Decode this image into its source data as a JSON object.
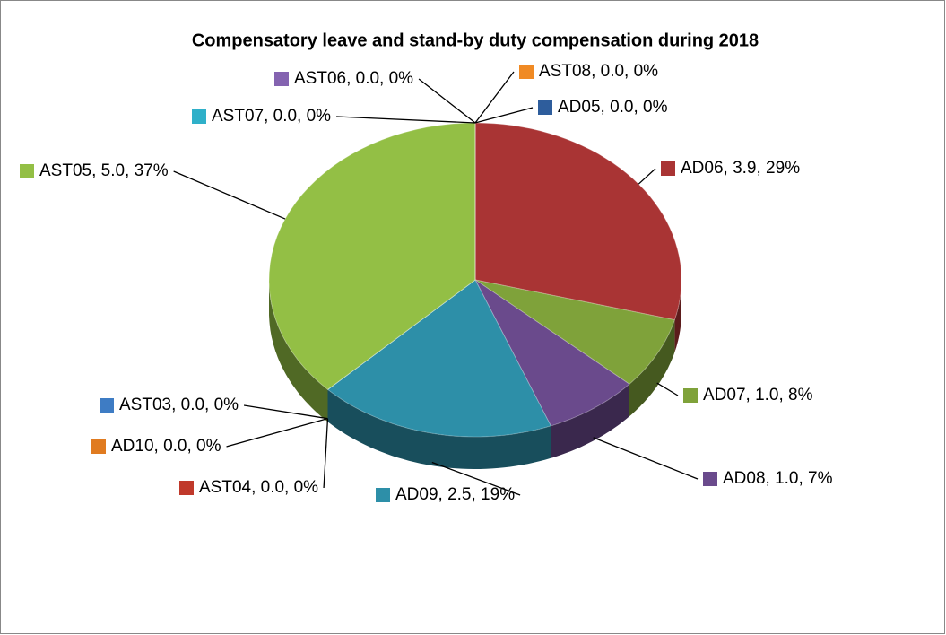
{
  "chart_data": {
    "type": "pie",
    "title": "Compensatory leave and stand-by duty compensation during 2018",
    "categories": [
      "AD05",
      "AD06",
      "AD07",
      "AD08",
      "AD09",
      "AST04",
      "AD10",
      "AST03",
      "AST05",
      "AST07",
      "AST06",
      "AST08"
    ],
    "values": [
      0.0,
      3.9,
      1.0,
      1.0,
      2.5,
      0.0,
      0.0,
      0.0,
      5.0,
      0.0,
      0.0,
      0.0
    ],
    "value_labels": [
      "AD05, 0.0, 0%",
      "AD06, 3.9, 29%",
      "AD07, 1.0, 8%",
      "AD08, 1.0, 7%",
      "AD09, 2.5, 19%",
      "AST04, 0.0, 0%",
      "AD10, 0.0, 0%",
      "AST03, 0.0, 0%",
      "AST05, 5.0, 37%",
      "AST07, 0.0, 0%",
      "AST06, 0.0, 0%",
      "AST08, 0.0, 0%"
    ],
    "colors": [
      "#2e5d9c",
      "#a93434",
      "#7fa23a",
      "#6a4a8c",
      "#2d8fa8",
      "#c0392b",
      "#e07b20",
      "#3e7cc4",
      "#93bf45",
      "#2fb0c9",
      "#8463b0",
      "#f08a24"
    ]
  }
}
